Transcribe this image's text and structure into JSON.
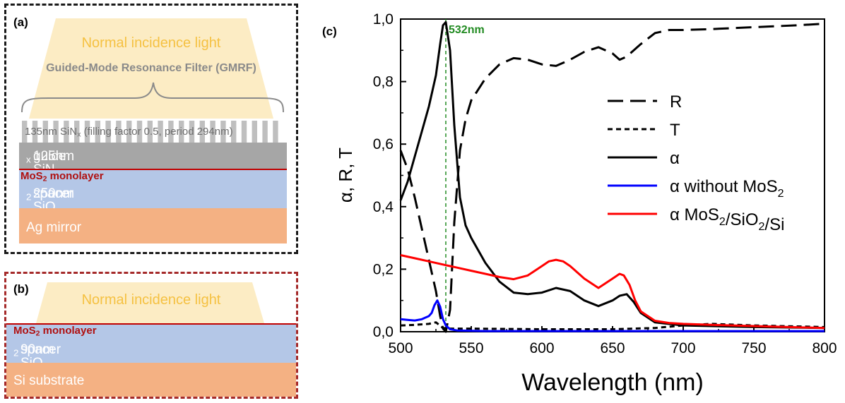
{
  "panel_a": {
    "label": "(a)",
    "light": "Normal incidence light",
    "gmrf": "Guided-Mode Resonance Filter (GMRF)",
    "grating_pre": "135nm SiN",
    "grating_sub": "x",
    "grating_post": " (filling factor 0.5, period 294nm)",
    "guide_pre": "125nm SiN",
    "guide_sub": "x",
    "guide_post": " guide",
    "mos2_pre": "MoS",
    "mos2_sub": "2",
    "mos2_post": " monolayer",
    "spacer_pre": "250nm SiO",
    "spacer_sub": "2",
    "spacer_post": " spacer",
    "mirror": "Ag mirror"
  },
  "panel_b": {
    "label": "(b)",
    "light": "Normal incidence light",
    "mos2_pre": "MoS",
    "mos2_sub": "2",
    "mos2_post": " monolayer",
    "spacer_pre": "90nm SiO",
    "spacer_sub": "2",
    "spacer_post": " spacer",
    "substrate": "Si substrate"
  },
  "colors": {
    "light": "#fcecc4",
    "light_text": "#f5c142",
    "grating": "#bfbfbf",
    "guide": "#a6a6a6",
    "spacer": "#b4c7e7",
    "mirror": "#f4b183",
    "mos2": "#c00000"
  },
  "chart_data": {
    "type": "line",
    "panel_label": "(c)",
    "xlabel": "Wavelength (nm)",
    "ylabel": "α, R, T",
    "xlim": [
      500,
      800
    ],
    "ylim": [
      0,
      1.0
    ],
    "xticks": [
      "500",
      "550",
      "600",
      "650",
      "700",
      "750",
      "800"
    ],
    "yticks": [
      "0,0",
      "0,2",
      "0,4",
      "0,6",
      "0,8",
      "1,0"
    ],
    "annotation": "532nm",
    "annotation_x": 532,
    "legend_position": "right-center",
    "series": [
      {
        "name": "R",
        "color": "#000000",
        "style": "dashed",
        "x": [
          500,
          505,
          510,
          515,
          520,
          525,
          528,
          530,
          532,
          535,
          538,
          542,
          546,
          550,
          560,
          570,
          580,
          590,
          600,
          610,
          620,
          630,
          640,
          650,
          655,
          660,
          670,
          680,
          690,
          700,
          720,
          740,
          760,
          780,
          800
        ],
        "y": [
          0.58,
          0.52,
          0.43,
          0.33,
          0.23,
          0.13,
          0.05,
          0.01,
          0.0,
          0.07,
          0.35,
          0.58,
          0.68,
          0.74,
          0.81,
          0.855,
          0.875,
          0.87,
          0.855,
          0.85,
          0.87,
          0.895,
          0.91,
          0.89,
          0.87,
          0.88,
          0.92,
          0.955,
          0.965,
          0.965,
          0.968,
          0.972,
          0.976,
          0.98,
          0.985
        ]
      },
      {
        "name": "T",
        "color": "#000000",
        "style": "dotted",
        "x": [
          500,
          510,
          520,
          525,
          530,
          535,
          540,
          550,
          600,
          650,
          680,
          700,
          720,
          750,
          800
        ],
        "y": [
          0.02,
          0.022,
          0.025,
          0.03,
          0.012,
          0.01,
          0.01,
          0.01,
          0.008,
          0.008,
          0.012,
          0.02,
          0.025,
          0.02,
          0.015
        ]
      },
      {
        "name": "α",
        "color": "#000000",
        "style": "solid",
        "x": [
          500,
          505,
          510,
          515,
          520,
          525,
          528,
          530,
          532,
          535,
          538,
          542,
          546,
          550,
          560,
          570,
          580,
          590,
          600,
          610,
          620,
          630,
          640,
          650,
          655,
          660,
          665,
          670,
          680,
          700,
          750,
          800
        ],
        "y": [
          0.42,
          0.48,
          0.56,
          0.64,
          0.72,
          0.82,
          0.92,
          0.98,
          0.99,
          0.9,
          0.66,
          0.43,
          0.34,
          0.3,
          0.22,
          0.16,
          0.125,
          0.12,
          0.125,
          0.14,
          0.13,
          0.1,
          0.082,
          0.1,
          0.115,
          0.12,
          0.095,
          0.06,
          0.03,
          0.02,
          0.015,
          0.012
        ]
      },
      {
        "name": "α without MoS2",
        "color": "#0000ff",
        "style": "solid",
        "x": [
          500,
          505,
          510,
          515,
          520,
          522,
          524,
          526,
          528,
          530,
          532,
          535,
          540,
          560,
          600,
          700,
          800
        ],
        "y": [
          0.04,
          0.038,
          0.036,
          0.04,
          0.05,
          0.06,
          0.085,
          0.1,
          0.08,
          0.04,
          0.02,
          0.008,
          0.004,
          0.002,
          0.002,
          0.002,
          0.002
        ]
      },
      {
        "name": "α MoS2/SiO2/Si",
        "color": "#ff0000",
        "style": "solid",
        "x": [
          500,
          510,
          520,
          530,
          540,
          550,
          560,
          570,
          580,
          590,
          600,
          605,
          610,
          615,
          620,
          630,
          640,
          650,
          655,
          658,
          662,
          666,
          670,
          680,
          690,
          700,
          720,
          750,
          800
        ],
        "y": [
          0.245,
          0.235,
          0.225,
          0.215,
          0.205,
          0.195,
          0.185,
          0.175,
          0.168,
          0.18,
          0.21,
          0.225,
          0.23,
          0.225,
          0.21,
          0.17,
          0.14,
          0.17,
          0.185,
          0.18,
          0.15,
          0.1,
          0.065,
          0.035,
          0.028,
          0.025,
          0.022,
          0.018,
          0.012
        ]
      }
    ]
  }
}
